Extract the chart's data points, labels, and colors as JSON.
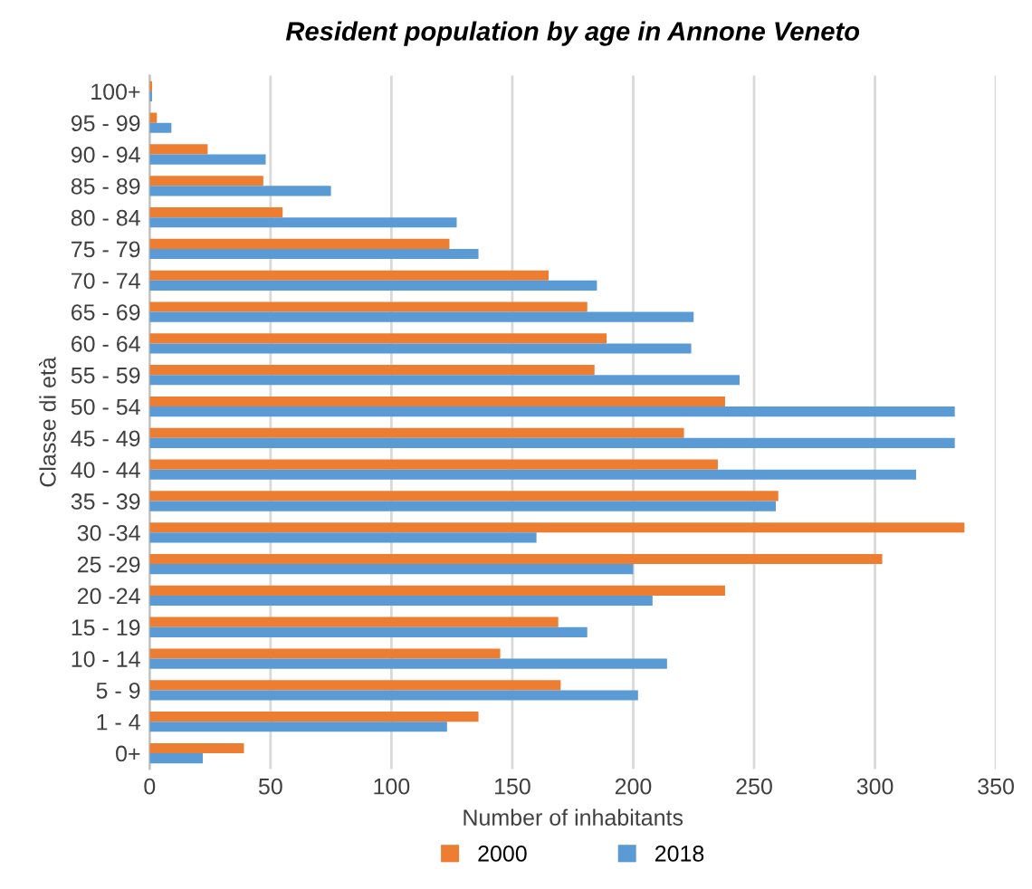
{
  "chart_data": {
    "type": "bar",
    "orientation": "horizontal",
    "title": "Resident population by age in Annone Veneto",
    "xlabel": "Number of inhabitants",
    "ylabel": "Classe di età",
    "categories": [
      "100+",
      "95 - 99",
      "90 - 94",
      "85 - 89",
      "80 - 84",
      "75 - 79",
      "70 - 74",
      "65 - 69",
      "60 - 64",
      "55 - 59",
      "50 - 54",
      "45 - 49",
      "40 - 44",
      "35 - 39",
      "30 -34",
      "25 -29",
      "20 -24",
      "15 - 19",
      "10 - 14",
      "5 - 9",
      "1 - 4",
      "0+"
    ],
    "series": [
      {
        "name": "2000",
        "color": "#ed7d31",
        "values": [
          1,
          3,
          24,
          47,
          55,
          124,
          165,
          181,
          189,
          184,
          238,
          221,
          235,
          260,
          337,
          303,
          238,
          169,
          145,
          170,
          136,
          39
        ]
      },
      {
        "name": "2018",
        "color": "#5b9bd5",
        "values": [
          1,
          9,
          48,
          75,
          127,
          136,
          185,
          225,
          224,
          244,
          333,
          333,
          317,
          259,
          160,
          200,
          208,
          181,
          214,
          202,
          123,
          22
        ]
      }
    ],
    "xlim": [
      0,
      350
    ],
    "xticks": [
      0,
      50,
      100,
      150,
      200,
      250,
      300,
      350
    ],
    "grid": "x",
    "legend": "bottom"
  }
}
